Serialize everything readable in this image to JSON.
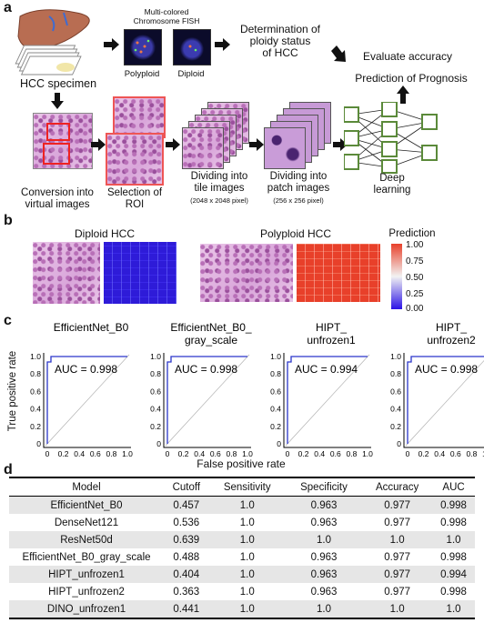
{
  "panel_a": {
    "letter": "a",
    "fish_title_line1": "Multi-colored",
    "fish_title_line2": "Chromosome FISH",
    "fish_left_label": "Polyploid",
    "fish_right_label": "Diploid",
    "ploidy_line1": "Determination of",
    "ploidy_line2": "ploidy status",
    "ploidy_line3": "of HCC",
    "evaluate_label": "Evaluate accuracy",
    "prognosis_label": "Prediction of Prognosis",
    "specimen_label": "HCC specimen",
    "virtual_line1": "Conversion into",
    "virtual_line2": "virtual images",
    "roi_line1": "Selection of",
    "roi_line2": "ROI",
    "tile_line1": "Dividing into",
    "tile_line2": "tile images",
    "tile_size": "(2048 x 2048 pixel)",
    "patch_line1": "Dividing into",
    "patch_line2": "patch images",
    "patch_size": "(256 x 256 pixel)",
    "dl_line1": "Deep",
    "dl_line2": "learning"
  },
  "panel_b": {
    "letter": "b",
    "diploid_title": "Diploid HCC",
    "polyploid_title": "Polyploid HCC",
    "colorbar_title": "Prediction",
    "colorbar_ticks": [
      "1.00",
      "0.75",
      "0.50",
      "0.25",
      "0.00"
    ],
    "colors": {
      "high": "#e8402a",
      "mid": "#f2f2f2",
      "low": "#2b12e6"
    }
  },
  "panel_c": {
    "letter": "c",
    "ylabel": "True positive rate",
    "xlabel": "False positive rate",
    "x_ticks": [
      "0",
      "0.2",
      "0.4",
      "0.6",
      "0.8",
      "1.0"
    ],
    "y_ticks": [
      "1.0",
      "0.8",
      "0.6",
      "0.4",
      "0.2",
      "0"
    ],
    "line_color": "#2a35c9",
    "plots": [
      {
        "title_line1": "EfficientNet_B0",
        "title_line2": "",
        "auc": "AUC = 0.998"
      },
      {
        "title_line1": "EfficientNet_B0_",
        "title_line2": "gray_scale",
        "auc": "AUC = 0.998"
      },
      {
        "title_line1": "HIPT_",
        "title_line2": "unfrozen1",
        "auc": "AUC = 0.994"
      },
      {
        "title_line1": "HIPT_",
        "title_line2": "unfrozen2",
        "auc": "AUC = 0.998"
      }
    ]
  },
  "panel_d": {
    "letter": "d",
    "headers": [
      "Model",
      "Cutoff",
      "Sensitivity",
      "Specificity",
      "Accuracy",
      "AUC"
    ],
    "rows": [
      [
        "EfficientNet_B0",
        "0.457",
        "1.0",
        "0.963",
        "0.977",
        "0.998"
      ],
      [
        "DenseNet121",
        "0.536",
        "1.0",
        "0.963",
        "0.977",
        "0.998"
      ],
      [
        "ResNet50d",
        "0.639",
        "1.0",
        "1.0",
        "1.0",
        "1.0"
      ],
      [
        "EfficientNet_B0_gray_scale",
        "0.488",
        "1.0",
        "0.963",
        "0.977",
        "0.998"
      ],
      [
        "HIPT_unfrozen1",
        "0.404",
        "1.0",
        "0.963",
        "0.977",
        "0.994"
      ],
      [
        "HIPT_unfrozen2",
        "0.363",
        "1.0",
        "0.963",
        "0.977",
        "0.998"
      ],
      [
        "DINO_unfrozen1",
        "0.441",
        "1.0",
        "1.0",
        "1.0",
        "1.0"
      ]
    ]
  }
}
